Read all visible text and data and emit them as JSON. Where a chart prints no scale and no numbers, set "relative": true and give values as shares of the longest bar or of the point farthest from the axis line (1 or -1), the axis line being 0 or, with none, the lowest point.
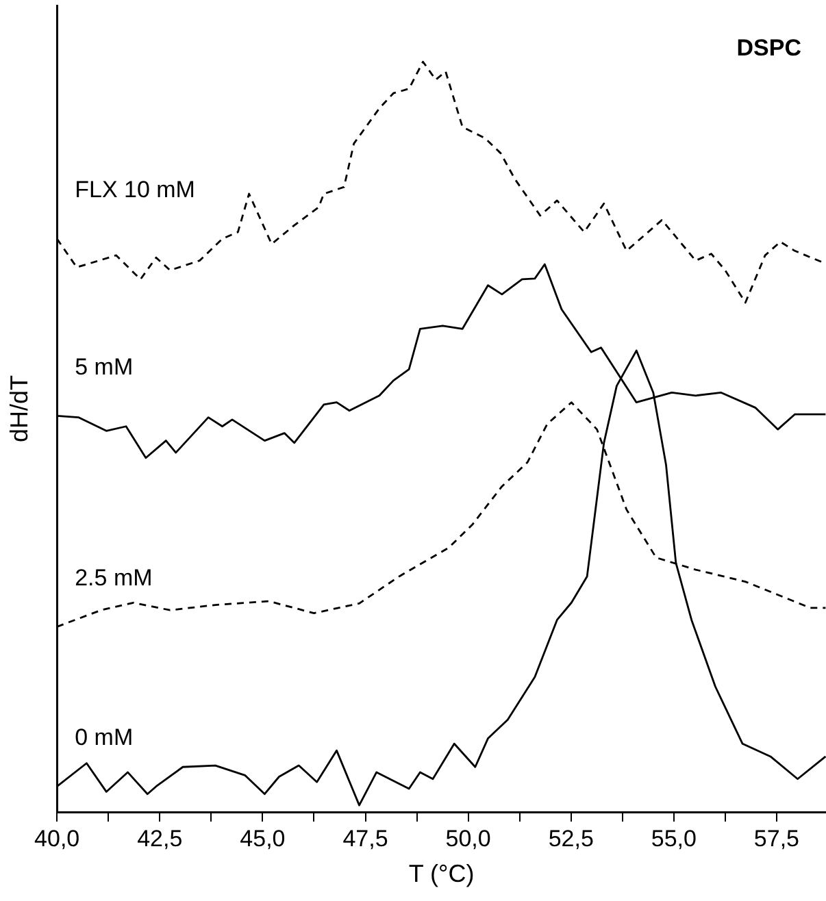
{
  "chart_data": {
    "type": "line",
    "title": "DSPC",
    "xlabel": "T (°C)",
    "ylabel": "dH/dT",
    "relative": true,
    "legend": false,
    "grid": false,
    "marker": "none",
    "xlim": [
      40,
      58.7
    ],
    "xticks": [
      {
        "value": 40,
        "label": "40,0"
      },
      {
        "value": 41.25,
        "label": null
      },
      {
        "value": 42.5,
        "label": "42,5"
      },
      {
        "value": 43.75,
        "label": null
      },
      {
        "value": 45,
        "label": "45,0"
      },
      {
        "value": 46.25,
        "label": null
      },
      {
        "value": 47.5,
        "label": "47,5"
      },
      {
        "value": 48.75,
        "label": null
      },
      {
        "value": 50,
        "label": "50,0"
      },
      {
        "value": 51.25,
        "label": null
      },
      {
        "value": 52.5,
        "label": "52,5"
      },
      {
        "value": 53.75,
        "label": null
      },
      {
        "value": 55,
        "label": "55,0"
      },
      {
        "value": 56.25,
        "label": null
      },
      {
        "value": 57.5,
        "label": "57,5"
      }
    ],
    "series": [
      {
        "name": "FLX 10 mM",
        "color": "#000000",
        "line_style": "dashed",
        "x": [
          40.0,
          40.48,
          41.44,
          42.03,
          42.41,
          42.75,
          43.47,
          44.02,
          44.4,
          44.67,
          45.22,
          45.77,
          46.36,
          46.49,
          46.98,
          47.22,
          47.84,
          48.18,
          48.56,
          48.9,
          49.21,
          49.45,
          49.86,
          50.41,
          50.79,
          51.13,
          51.75,
          52.16,
          52.82,
          53.3,
          53.85,
          54.71,
          55.53,
          55.91,
          56.25,
          56.74,
          57.22,
          57.59,
          57.94,
          58.69
        ],
        "values": [
          0.764,
          0.726,
          0.742,
          0.71,
          0.739,
          0.722,
          0.735,
          0.764,
          0.773,
          0.824,
          0.757,
          0.782,
          0.806,
          0.824,
          0.833,
          0.891,
          0.938,
          0.958,
          0.964,
          1,
          0.976,
          0.987,
          0.913,
          0.898,
          0.878,
          0.844,
          0.795,
          0.815,
          0.773,
          0.811,
          0.748,
          0.789,
          0.735,
          0.744,
          0.722,
          0.679,
          0.742,
          0.76,
          0.748,
          0.731
        ]
      },
      {
        "name": "5 mM",
        "color": "#000000",
        "line_style": "solid",
        "x": [
          40.0,
          40.52,
          41.2,
          41.68,
          42.16,
          42.65,
          42.89,
          43.68,
          44.02,
          44.26,
          45.05,
          45.53,
          45.77,
          46.49,
          46.8,
          47.11,
          47.84,
          48.18,
          48.56,
          48.83,
          49.38,
          49.86,
          50.48,
          50.82,
          51.31,
          51.62,
          51.86,
          52.27,
          52.99,
          53.23,
          54.09,
          54.95,
          55.53,
          56.15,
          56.98,
          57.53,
          57.94,
          58.69
        ],
        "values": [
          0.528,
          0.526,
          0.508,
          0.514,
          0.472,
          0.495,
          0.479,
          0.526,
          0.514,
          0.523,
          0.495,
          0.505,
          0.492,
          0.543,
          0.546,
          0.535,
          0.555,
          0.575,
          0.59,
          0.644,
          0.648,
          0.644,
          0.702,
          0.69,
          0.71,
          0.711,
          0.73,
          0.67,
          0.613,
          0.619,
          0.546,
          0.559,
          0.555,
          0.559,
          0.539,
          0.51,
          0.53,
          0.53
        ]
      },
      {
        "name": "2.5 mM",
        "color": "#000000",
        "line_style": "dashed",
        "x": [
          40.0,
          41.07,
          41.86,
          42.75,
          43.85,
          45.15,
          46.25,
          47.35,
          48.32,
          49.52,
          50.1,
          50.82,
          51.44,
          51.92,
          52.51,
          53.13,
          53.85,
          54.57,
          55.53,
          56.74,
          58.32,
          58.69
        ],
        "values": [
          0.247,
          0.269,
          0.279,
          0.269,
          0.276,
          0.281,
          0.265,
          0.278,
          0.314,
          0.352,
          0.383,
          0.434,
          0.466,
          0.517,
          0.546,
          0.51,
          0.403,
          0.339,
          0.323,
          0.307,
          0.272,
          0.272
        ]
      },
      {
        "name": "0 mM",
        "color": "#000000",
        "line_style": "solid",
        "x": [
          40.0,
          40.72,
          41.2,
          41.72,
          42.2,
          42.41,
          43.06,
          43.85,
          44.57,
          45.05,
          45.4,
          45.88,
          46.32,
          46.8,
          47.35,
          47.77,
          48.56,
          48.83,
          49.14,
          49.66,
          50.17,
          50.48,
          50.96,
          51.62,
          52.16,
          52.51,
          52.89,
          53.3,
          53.61,
          54.09,
          54.5,
          54.81,
          55.05,
          55.43,
          56.01,
          56.67,
          57.35,
          58.01,
          58.69
        ],
        "values": [
          0.034,
          0.065,
          0.027,
          0.053,
          0.024,
          0.034,
          0.06,
          0.062,
          0.049,
          0.024,
          0.047,
          0.062,
          0.04,
          0.082,
          0.009,
          0.053,
          0.031,
          0.053,
          0.044,
          0.091,
          0.06,
          0.098,
          0.123,
          0.18,
          0.256,
          0.279,
          0.314,
          0.492,
          0.568,
          0.615,
          0.559,
          0.463,
          0.332,
          0.256,
          0.167,
          0.091,
          0.074,
          0.044,
          0.074
        ]
      }
    ]
  }
}
